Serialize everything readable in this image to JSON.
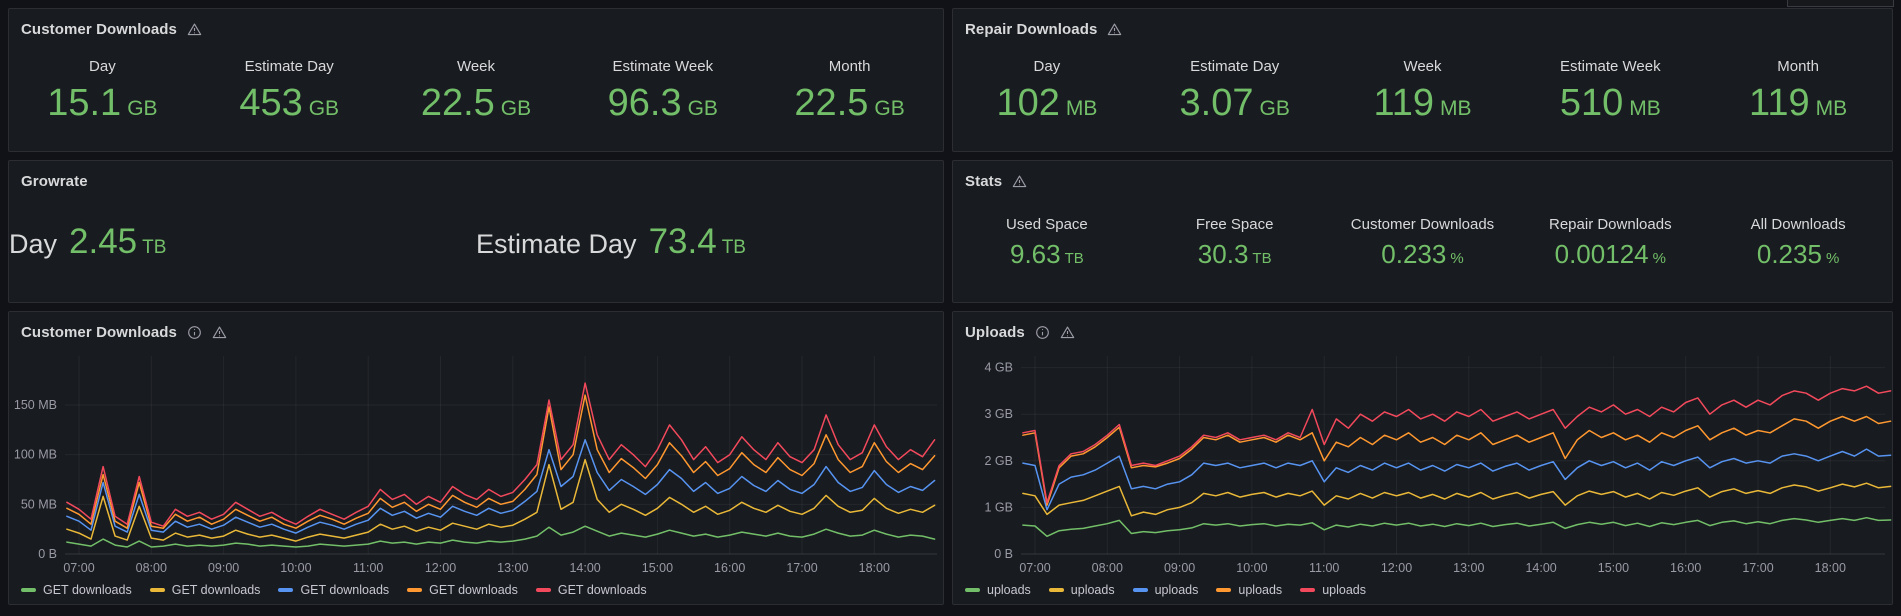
{
  "theme": {
    "background": "#111217",
    "panel_background": "#181b1f",
    "panel_border": "#2c2d33",
    "value_green": "#73bf69",
    "text_primary": "#d8d9da",
    "text_muted": "#9a9aa6"
  },
  "palette": {
    "green": "#73BF69",
    "yellow": "#EAB839",
    "blue": "#5794F2",
    "orange": "#FF9830",
    "red": "#F2495C"
  },
  "panels": {
    "customer_downloads": {
      "title": "Customer Downloads",
      "icons": [
        "warning-triangle-icon"
      ],
      "stats": [
        {
          "label": "Day",
          "value": "15.1",
          "unit": "GB"
        },
        {
          "label": "Estimate Day",
          "value": "453",
          "unit": "GB"
        },
        {
          "label": "Week",
          "value": "22.5",
          "unit": "GB"
        },
        {
          "label": "Estimate Week",
          "value": "96.3",
          "unit": "GB"
        },
        {
          "label": "Month",
          "value": "22.5",
          "unit": "GB"
        }
      ]
    },
    "repair_downloads": {
      "title": "Repair Downloads",
      "icons": [
        "warning-triangle-icon"
      ],
      "stats": [
        {
          "label": "Day",
          "value": "102",
          "unit": "MB"
        },
        {
          "label": "Estimate Day",
          "value": "3.07",
          "unit": "GB"
        },
        {
          "label": "Week",
          "value": "119",
          "unit": "MB"
        },
        {
          "label": "Estimate Week",
          "value": "510",
          "unit": "MB"
        },
        {
          "label": "Month",
          "value": "119",
          "unit": "MB"
        }
      ]
    },
    "growrate": {
      "title": "Growrate",
      "icons": [],
      "stats": [
        {
          "label": "Day",
          "value": "2.45",
          "unit": "TB"
        },
        {
          "label": "Estimate Day",
          "value": "73.4",
          "unit": "TB"
        }
      ]
    },
    "stats": {
      "title": "Stats",
      "icons": [
        "warning-triangle-icon"
      ],
      "stats": [
        {
          "label": "Used Space",
          "value": "9.63",
          "unit": "TB"
        },
        {
          "label": "Free Space",
          "value": "30.3",
          "unit": "TB"
        },
        {
          "label": "Customer Downloads",
          "value": "0.233",
          "unit": "%"
        },
        {
          "label": "Repair Downloads",
          "value": "0.00124",
          "unit": "%"
        },
        {
          "label": "All Downloads",
          "value": "0.235",
          "unit": "%"
        }
      ]
    },
    "customer_downloads_chart": {
      "title": "Customer Downloads",
      "icons": [
        "info-circle-icon",
        "warning-triangle-icon"
      ]
    },
    "uploads_chart": {
      "title": "Uploads",
      "icons": [
        "info-circle-icon",
        "warning-triangle-icon"
      ]
    }
  },
  "chart_data": [
    {
      "type": "line",
      "title": "Customer Downloads",
      "y_unit": "MB",
      "x_start_hour": 6.8333,
      "x_step_hour": 0.16667,
      "x_ticks": [
        {
          "hour": 7,
          "label": "07:00"
        },
        {
          "hour": 8,
          "label": "08:00"
        },
        {
          "hour": 9,
          "label": "09:00"
        },
        {
          "hour": 10,
          "label": "10:00"
        },
        {
          "hour": 11,
          "label": "11:00"
        },
        {
          "hour": 12,
          "label": "12:00"
        },
        {
          "hour": 13,
          "label": "13:00"
        },
        {
          "hour": 14,
          "label": "14:00"
        },
        {
          "hour": 15,
          "label": "15:00"
        },
        {
          "hour": 16,
          "label": "16:00"
        },
        {
          "hour": 17,
          "label": "17:00"
        },
        {
          "hour": 18,
          "label": "18:00"
        }
      ],
      "y_ticks": [
        {
          "value": 0,
          "label": "0 B"
        },
        {
          "value": 50,
          "label": "50 MB"
        },
        {
          "value": 100,
          "label": "100 MB"
        },
        {
          "value": 150,
          "label": "150 MB"
        }
      ],
      "y_max": 199,
      "grid": true,
      "legend_position": "bottom",
      "series": [
        {
          "name": "GET downloads",
          "color": "#73BF69",
          "values": [
            12,
            10,
            8,
            15,
            9,
            7,
            13,
            7,
            8,
            10,
            8,
            9,
            8,
            9,
            11,
            10,
            8,
            9,
            8,
            7,
            8,
            10,
            9,
            8,
            9,
            10,
            13,
            11,
            12,
            10,
            12,
            11,
            14,
            12,
            11,
            13,
            12,
            13,
            15,
            18,
            27,
            19,
            22,
            28,
            23,
            18,
            21,
            19,
            17,
            20,
            24,
            21,
            18,
            20,
            17,
            19,
            22,
            20,
            18,
            21,
            18,
            17,
            20,
            25,
            21,
            18,
            19,
            24,
            20,
            17,
            19,
            18,
            15
          ]
        },
        {
          "name": "GET downloads",
          "color": "#EAB839",
          "values": [
            25,
            21,
            15,
            58,
            18,
            14,
            48,
            16,
            14,
            21,
            17,
            19,
            16,
            18,
            24,
            20,
            17,
            19,
            16,
            13,
            17,
            20,
            18,
            16,
            19,
            22,
            30,
            25,
            28,
            23,
            27,
            24,
            31,
            28,
            25,
            30,
            27,
            29,
            35,
            42,
            90,
            45,
            52,
            95,
            55,
            42,
            50,
            45,
            39,
            46,
            57,
            50,
            42,
            48,
            40,
            44,
            52,
            46,
            42,
            49,
            43,
            40,
            46,
            59,
            48,
            42,
            44,
            56,
            46,
            41,
            45,
            42,
            49
          ]
        },
        {
          "name": "GET downloads",
          "color": "#5794F2",
          "values": [
            38,
            33,
            24,
            72,
            28,
            22,
            60,
            24,
            22,
            33,
            27,
            30,
            25,
            29,
            37,
            32,
            27,
            30,
            25,
            21,
            27,
            32,
            29,
            25,
            30,
            34,
            46,
            39,
            43,
            36,
            41,
            37,
            48,
            43,
            39,
            46,
            41,
            44,
            53,
            63,
            105,
            68,
            78,
            115,
            82,
            64,
            75,
            68,
            60,
            70,
            85,
            76,
            63,
            72,
            61,
            66,
            78,
            69,
            63,
            74,
            65,
            61,
            70,
            88,
            72,
            63,
            67,
            84,
            70,
            62,
            68,
            64,
            74
          ]
        },
        {
          "name": "GET downloads",
          "color": "#FF9830",
          "values": [
            46,
            40,
            30,
            80,
            33,
            26,
            72,
            28,
            26,
            40,
            33,
            37,
            30,
            35,
            45,
            39,
            33,
            37,
            30,
            26,
            33,
            39,
            35,
            30,
            36,
            41,
            56,
            47,
            52,
            43,
            50,
            45,
            59,
            52,
            47,
            56,
            50,
            53,
            65,
            80,
            148,
            85,
            100,
            160,
            105,
            82,
            96,
            87,
            76,
            90,
            112,
            99,
            82,
            93,
            79,
            86,
            102,
            90,
            82,
            97,
            85,
            79,
            91,
            120,
            95,
            82,
            88,
            112,
            93,
            82,
            91,
            85,
            99
          ]
        },
        {
          "name": "GET downloads",
          "color": "#F2495C",
          "values": [
            52,
            45,
            35,
            88,
            38,
            30,
            78,
            32,
            28,
            45,
            38,
            42,
            35,
            40,
            52,
            45,
            38,
            42,
            35,
            30,
            38,
            45,
            40,
            35,
            42,
            48,
            65,
            55,
            60,
            50,
            58,
            52,
            68,
            60,
            55,
            65,
            58,
            62,
            75,
            90,
            155,
            95,
            110,
            172,
            120,
            95,
            110,
            100,
            88,
            105,
            130,
            115,
            95,
            108,
            92,
            100,
            118,
            105,
            95,
            112,
            98,
            92,
            105,
            140,
            110,
            95,
            102,
            130,
            108,
            95,
            105,
            98,
            115
          ]
        }
      ]
    },
    {
      "type": "line",
      "title": "Uploads",
      "y_unit": "GB",
      "x_start_hour": 6.8333,
      "x_step_hour": 0.16667,
      "x_ticks": [
        {
          "hour": 7,
          "label": "07:00"
        },
        {
          "hour": 8,
          "label": "08:00"
        },
        {
          "hour": 9,
          "label": "09:00"
        },
        {
          "hour": 10,
          "label": "10:00"
        },
        {
          "hour": 11,
          "label": "11:00"
        },
        {
          "hour": 12,
          "label": "12:00"
        },
        {
          "hour": 13,
          "label": "13:00"
        },
        {
          "hour": 14,
          "label": "14:00"
        },
        {
          "hour": 15,
          "label": "15:00"
        },
        {
          "hour": 16,
          "label": "16:00"
        },
        {
          "hour": 17,
          "label": "17:00"
        },
        {
          "hour": 18,
          "label": "18:00"
        }
      ],
      "y_ticks": [
        {
          "value": 0,
          "label": "0 B"
        },
        {
          "value": 1,
          "label": "1 GB"
        },
        {
          "value": 2,
          "label": "2 GB"
        },
        {
          "value": 3,
          "label": "3 GB"
        },
        {
          "value": 4,
          "label": "4 GB"
        }
      ],
      "y_max": 4.25,
      "grid": true,
      "legend_position": "bottom",
      "series": [
        {
          "name": "uploads",
          "color": "#73BF69",
          "values": [
            0.62,
            0.6,
            0.38,
            0.5,
            0.53,
            0.55,
            0.6,
            0.65,
            0.72,
            0.44,
            0.48,
            0.46,
            0.5,
            0.52,
            0.56,
            0.65,
            0.62,
            0.65,
            0.6,
            0.63,
            0.65,
            0.6,
            0.64,
            0.62,
            0.67,
            0.52,
            0.62,
            0.58,
            0.64,
            0.6,
            0.66,
            0.62,
            0.66,
            0.6,
            0.64,
            0.59,
            0.65,
            0.61,
            0.66,
            0.59,
            0.63,
            0.66,
            0.6,
            0.64,
            0.68,
            0.55,
            0.63,
            0.68,
            0.64,
            0.68,
            0.61,
            0.66,
            0.59,
            0.67,
            0.63,
            0.68,
            0.72,
            0.61,
            0.68,
            0.71,
            0.65,
            0.69,
            0.65,
            0.72,
            0.76,
            0.73,
            0.68,
            0.72,
            0.76,
            0.72,
            0.78,
            0.72,
            0.73
          ]
        },
        {
          "name": "uploads",
          "color": "#EAB839",
          "values": [
            1.3,
            1.25,
            0.85,
            1.05,
            1.1,
            1.15,
            1.25,
            1.35,
            1.45,
            0.82,
            0.9,
            0.85,
            0.95,
            1.0,
            1.1,
            1.3,
            1.25,
            1.32,
            1.22,
            1.28,
            1.32,
            1.22,
            1.3,
            1.25,
            1.35,
            1.05,
            1.25,
            1.18,
            1.3,
            1.2,
            1.32,
            1.25,
            1.32,
            1.2,
            1.28,
            1.18,
            1.3,
            1.22,
            1.32,
            1.18,
            1.26,
            1.32,
            1.2,
            1.28,
            1.34,
            1.05,
            1.25,
            1.35,
            1.28,
            1.34,
            1.22,
            1.3,
            1.18,
            1.32,
            1.26,
            1.35,
            1.42,
            1.22,
            1.34,
            1.4,
            1.3,
            1.36,
            1.3,
            1.42,
            1.48,
            1.44,
            1.35,
            1.42,
            1.5,
            1.44,
            1.52,
            1.42,
            1.45
          ]
        },
        {
          "name": "uploads",
          "color": "#5794F2",
          "values": [
            1.95,
            1.9,
            0.95,
            1.5,
            1.65,
            1.7,
            1.8,
            1.95,
            2.1,
            1.4,
            1.45,
            1.4,
            1.5,
            1.55,
            1.7,
            1.95,
            1.9,
            1.95,
            1.85,
            1.9,
            1.95,
            1.85,
            1.95,
            1.9,
            2.0,
            1.55,
            1.85,
            1.75,
            1.9,
            1.8,
            1.95,
            1.85,
            1.95,
            1.8,
            1.9,
            1.78,
            1.92,
            1.85,
            1.95,
            1.78,
            1.88,
            1.95,
            1.8,
            1.9,
            1.98,
            1.6,
            1.85,
            2.0,
            1.9,
            1.98,
            1.85,
            1.95,
            1.8,
            1.98,
            1.9,
            2.0,
            2.08,
            1.85,
            1.98,
            2.05,
            1.95,
            2.0,
            1.95,
            2.1,
            2.15,
            2.1,
            2.0,
            2.1,
            2.2,
            2.1,
            2.25,
            2.1,
            2.12
          ]
        },
        {
          "name": "uploads",
          "color": "#FF9830",
          "values": [
            2.55,
            2.6,
            1.05,
            1.85,
            2.1,
            2.15,
            2.3,
            2.5,
            2.72,
            1.85,
            1.9,
            1.87,
            1.95,
            2.05,
            2.25,
            2.5,
            2.45,
            2.55,
            2.4,
            2.45,
            2.5,
            2.4,
            2.55,
            2.45,
            2.6,
            2.0,
            2.4,
            2.3,
            2.5,
            2.35,
            2.55,
            2.45,
            2.6,
            2.4,
            2.5,
            2.35,
            2.55,
            2.45,
            2.6,
            2.35,
            2.45,
            2.55,
            2.4,
            2.5,
            2.6,
            2.05,
            2.45,
            2.65,
            2.5,
            2.6,
            2.45,
            2.55,
            2.4,
            2.6,
            2.5,
            2.65,
            2.75,
            2.45,
            2.6,
            2.7,
            2.55,
            2.65,
            2.6,
            2.75,
            2.9,
            2.85,
            2.7,
            2.85,
            2.95,
            2.85,
            2.95,
            2.8,
            2.85
          ]
        },
        {
          "name": "uploads",
          "color": "#F2495C",
          "values": [
            2.6,
            2.65,
            1.1,
            1.9,
            2.15,
            2.2,
            2.35,
            2.55,
            2.78,
            1.9,
            1.95,
            1.9,
            2.0,
            2.1,
            2.3,
            2.55,
            2.5,
            2.6,
            2.45,
            2.5,
            2.55,
            2.45,
            2.6,
            2.5,
            3.1,
            2.35,
            2.9,
            2.7,
            3.0,
            2.85,
            3.05,
            2.95,
            3.1,
            2.9,
            3.0,
            2.85,
            3.05,
            2.95,
            3.1,
            2.85,
            2.95,
            3.05,
            2.9,
            3.0,
            3.1,
            2.7,
            2.95,
            3.15,
            3.05,
            3.2,
            3.0,
            3.1,
            2.95,
            3.15,
            3.05,
            3.25,
            3.35,
            3.0,
            3.2,
            3.3,
            3.15,
            3.3,
            3.2,
            3.4,
            3.5,
            3.45,
            3.3,
            3.45,
            3.55,
            3.5,
            3.6,
            3.45,
            3.5
          ]
        }
      ]
    }
  ]
}
